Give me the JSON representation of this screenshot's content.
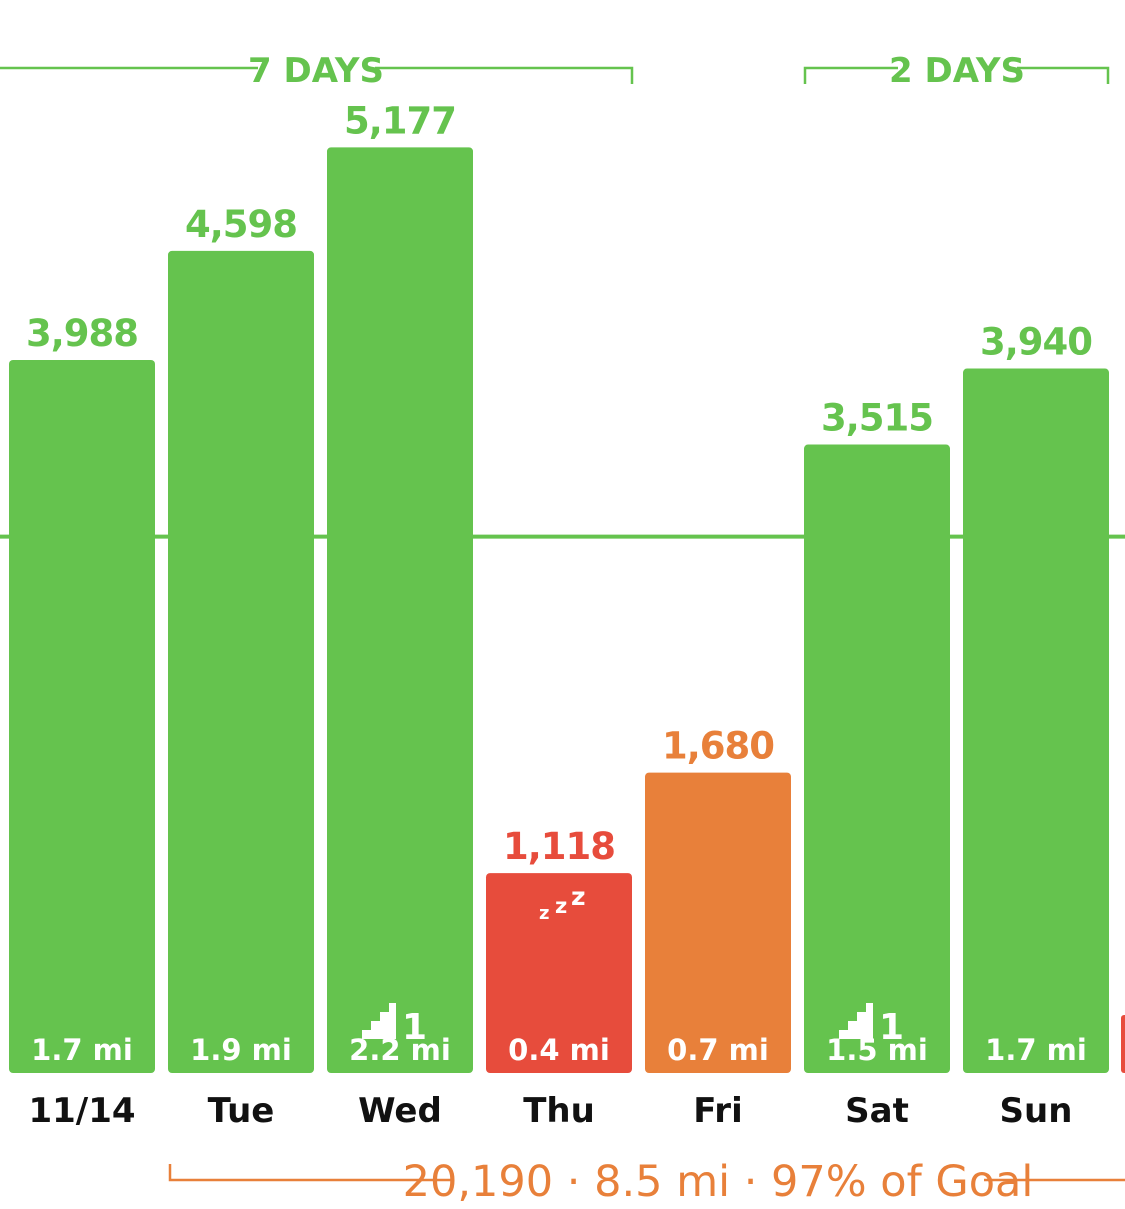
{
  "colors": {
    "goal_met": "#65c34e",
    "low": "#e74c3c",
    "mid": "#e8803a",
    "text_dark": "#111111",
    "white": "#ffffff"
  },
  "streaks": [
    {
      "label": "7 DAYS"
    },
    {
      "label": "2 DAYS"
    }
  ],
  "summary": {
    "text": "20,190 · 8.5 mi · 97% of Goal"
  },
  "chart_data": {
    "type": "bar",
    "categories": [
      "11/14",
      "Tue",
      "Wed",
      "Thu",
      "Fri",
      "Sat",
      "Sun"
    ],
    "values": [
      3988,
      4598,
      5177,
      1118,
      1680,
      3515,
      3940
    ],
    "value_labels": [
      "3,988",
      "4,598",
      "5,177",
      "1,118",
      "1,680",
      "3,515",
      "3,940"
    ],
    "distances": [
      "1.7 mi",
      "1.9 mi",
      "2.2 mi",
      "0.4 mi",
      "0.7 mi",
      "1.5 mi",
      "1.7 mi"
    ],
    "status": [
      "goal",
      "goal",
      "goal",
      "low",
      "mid",
      "goal",
      "goal"
    ],
    "floors": [
      null,
      null,
      1,
      null,
      null,
      1,
      null
    ],
    "sleep_icon": [
      false,
      false,
      false,
      true,
      false,
      false,
      false
    ],
    "goal_line": 3000,
    "ylim": [
      0,
      5600
    ]
  }
}
